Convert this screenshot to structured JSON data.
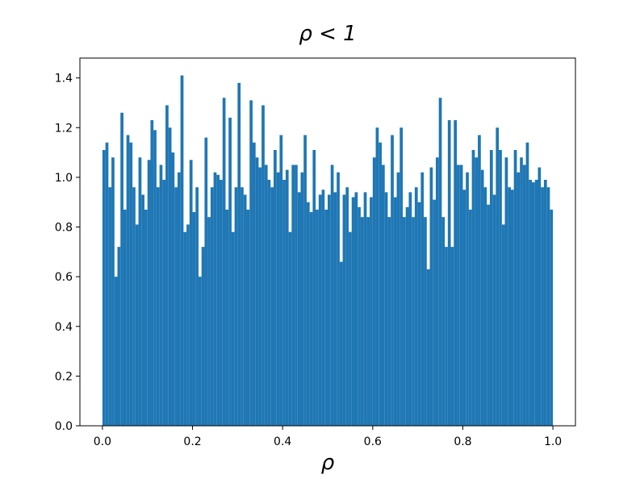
{
  "chart_data": {
    "type": "histogram",
    "title": "ρ < 1",
    "x_label": "ρ",
    "color": "#1f77b4",
    "bins": [
      0,
      0.0067,
      0.0133,
      0.02,
      0.0267,
      0.0333,
      0.04,
      0.0467,
      0.0533,
      0.06,
      0.0667,
      0.0733,
      0.08,
      0.0867,
      0.0933,
      0.1,
      0.1067,
      0.1133,
      0.12,
      0.1267,
      0.1333,
      0.14,
      0.1467,
      0.1533,
      0.16,
      0.1667,
      0.1733,
      0.18,
      0.1867,
      0.1933,
      0.2,
      0.2067,
      0.2133,
      0.22,
      0.2267,
      0.2333,
      0.24,
      0.2467,
      0.2533,
      0.26,
      0.2667,
      0.2733,
      0.28,
      0.2867,
      0.2933,
      0.3,
      0.3067,
      0.3133,
      0.32,
      0.3267,
      0.3333,
      0.34,
      0.3467,
      0.3533,
      0.36,
      0.3667,
      0.3733,
      0.38,
      0.3867,
      0.3933,
      0.4,
      0.4067,
      0.4133,
      0.42,
      0.4267,
      0.4333,
      0.44,
      0.4467,
      0.4533,
      0.46,
      0.4667,
      0.4733,
      0.48,
      0.4867,
      0.4933,
      0.5,
      0.5067,
      0.5133,
      0.52,
      0.5267,
      0.5333,
      0.54,
      0.5467,
      0.5533,
      0.56,
      0.5667,
      0.5733,
      0.58,
      0.5867,
      0.5933,
      0.6,
      0.6067,
      0.6133,
      0.62,
      0.6267,
      0.6333,
      0.64,
      0.6467,
      0.6533,
      0.66,
      0.6667,
      0.6733,
      0.68,
      0.6867,
      0.6933,
      0.7,
      0.7067,
      0.7133,
      0.72,
      0.7267,
      0.7333,
      0.74,
      0.7467,
      0.7533,
      0.76,
      0.7667,
      0.7733,
      0.78,
      0.7867,
      0.7933,
      0.8,
      0.8067,
      0.8133,
      0.82,
      0.8267,
      0.8333,
      0.84,
      0.8467,
      0.8533,
      0.86,
      0.8667,
      0.8733,
      0.88,
      0.8867,
      0.8933,
      0.9,
      0.9067,
      0.9133,
      0.92,
      0.9267,
      0.9333,
      0.94,
      0.9467,
      0.9533,
      0.96,
      0.9667,
      0.9733,
      0.98,
      0.9867,
      0.9933,
      1
    ],
    "values": [
      1.11,
      1.14,
      0.96,
      1.08,
      0.6,
      0.72,
      1.26,
      0.87,
      1.17,
      1.14,
      0.96,
      0.81,
      1.08,
      0.93,
      0.87,
      1.07,
      1.23,
      1.19,
      0.96,
      1.05,
      0.99,
      1.29,
      1.2,
      1.1,
      0.96,
      1.02,
      1.41,
      0.78,
      0.81,
      1.07,
      0.86,
      0.96,
      0.6,
      0.72,
      1.16,
      0.84,
      0.96,
      1.02,
      1.01,
      0.99,
      1.32,
      0.87,
      1.24,
      0.78,
      0.96,
      1.38,
      0.96,
      0.93,
      0.87,
      1.31,
      1.14,
      1.08,
      1.04,
      1.29,
      1.05,
      0.99,
      0.96,
      1.11,
      1.02,
      1.17,
      0.99,
      1.03,
      0.78,
      1.05,
      1.05,
      0.94,
      1.02,
      1.17,
      0.9,
      0.86,
      1.11,
      0.87,
      0.93,
      0.95,
      0.87,
      0.93,
      1.05,
      0.94,
      1.02,
      0.66,
      0.93,
      0.96,
      0.78,
      0.92,
      0.94,
      0.88,
      0.84,
      0.94,
      0.84,
      0.92,
      1.08,
      1.2,
      1.14,
      1.05,
      0.94,
      0.84,
      1.17,
      0.92,
      1.02,
      1.2,
      0.84,
      0.88,
      0.94,
      0.84,
      0.96,
      0.9,
      1.02,
      0.84,
      0.63,
      1.04,
      0.91,
      1.08,
      1.32,
      0.84,
      0.72,
      1.23,
      0.72,
      1.23,
      1.05,
      1.05,
      0.95,
      1.02,
      0.87,
      1.11,
      1.08,
      1.17,
      1.03,
      0.96,
      0.89,
      1.11,
      0.93,
      1.2,
      1.11,
      0.81,
      1.08,
      0.96,
      0.95,
      1.11,
      1.02,
      1.08,
      1.05,
      1.14,
      0.99,
      0.98,
      0.99,
      1.04,
      0.96,
      0.99,
      0.96,
      0.87
    ],
    "xlim": [
      -0.05,
      1.05
    ],
    "ylim": [
      0,
      1.48
    ],
    "xticks": [
      {
        "value": 0,
        "label": "0.0"
      },
      0.2,
      0.4,
      0.6,
      0.8,
      {
        "value": 1,
        "label": "1.0"
      }
    ],
    "yticks": [
      {
        "value": 0,
        "label": "0.0"
      },
      0.2,
      0.4,
      0.6,
      0.8,
      {
        "value": 1,
        "label": "1.0"
      },
      1.2,
      1.4
    ]
  }
}
